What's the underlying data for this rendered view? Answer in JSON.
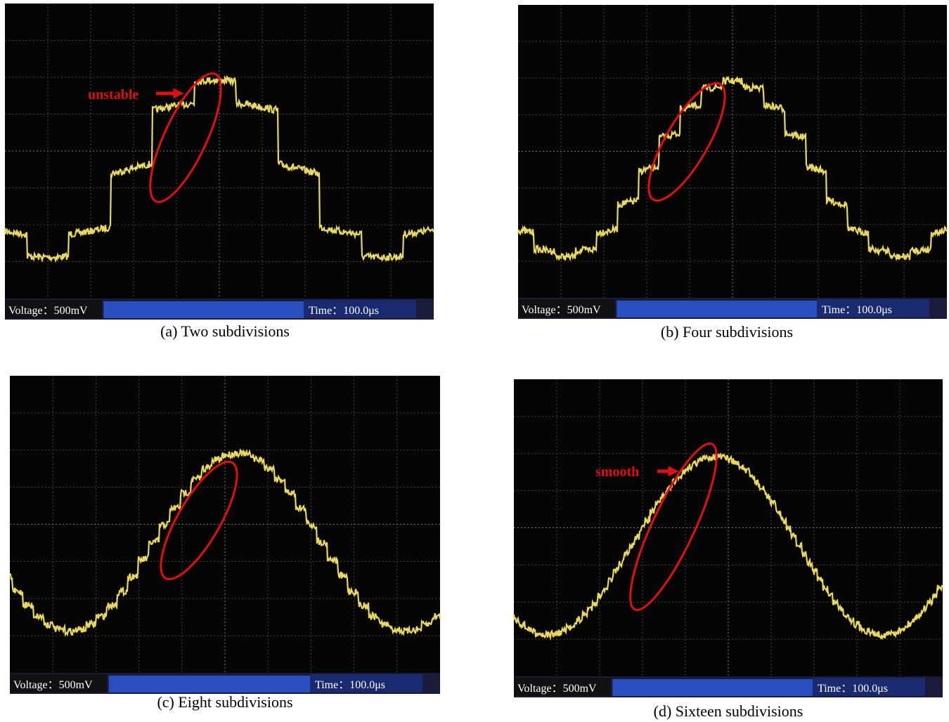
{
  "panels": [
    {
      "voltage": "Voltage：500mV",
      "time": "Time：100.0μs",
      "caption": "(a) Two subdivisions",
      "annotation": "unstable"
    },
    {
      "voltage": "Voltage：500mV",
      "time": "Time：100.0μs",
      "caption": "(b) Four subdivisions"
    },
    {
      "voltage": "Voltage：500mV",
      "time": "Time：100.0μs",
      "caption": "(c) Eight subdivisions"
    },
    {
      "voltage": "Voltage：500mV",
      "time": "Time：100.0μs",
      "caption": "(d) Sixteen subdivisions",
      "annotation": "smooth"
    }
  ]
}
